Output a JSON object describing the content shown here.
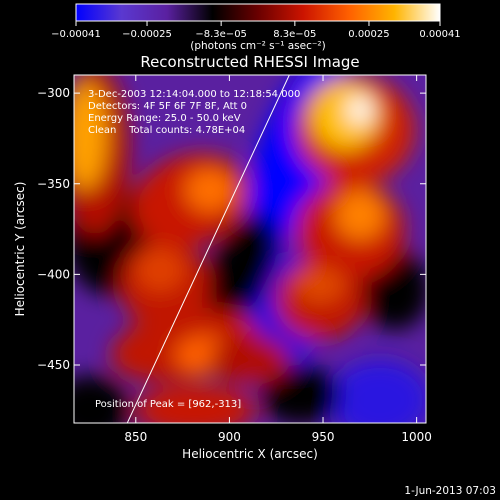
{
  "chart_data": {
    "type": "heatmap",
    "title": "Reconstructed RHESSI Image",
    "xlabel": "Heliocentric X (arcsec)",
    "ylabel": "Heliocentric Y (arcsec)",
    "xlim": [
      817,
      1005
    ],
    "ylim": [
      -482,
      -290
    ],
    "xticks": [
      {
        "value": 850,
        "label": "850"
      },
      {
        "value": 900,
        "label": "900"
      },
      {
        "value": 950,
        "label": "950"
      },
      {
        "value": 1000,
        "label": "1000"
      }
    ],
    "yticks": [
      {
        "value": -300,
        "label": "−300"
      },
      {
        "value": -350,
        "label": "−350"
      },
      {
        "value": -400,
        "label": "−400"
      },
      {
        "value": -450,
        "label": "−450"
      }
    ],
    "colorbar": {
      "range": [
        -0.00041,
        0.00041
      ],
      "tick_values": [
        -0.00041,
        -0.00025,
        -8.3e-05,
        8.3e-05,
        0.00025,
        0.00041
      ],
      "tick_labels": [
        "−0.00041",
        "−0.00025",
        "−8.3e−05",
        "8.3e−05",
        "0.00025",
        "0.00041"
      ],
      "unit_label": "(photons cm⁻² s⁻¹ asec⁻²)",
      "colors": [
        "#0000ff",
        "#5a38d0",
        "#5a20a0",
        "#000000",
        "#6a0000",
        "#cc1400",
        "#ff6000",
        "#ffb400",
        "#ffffff"
      ]
    },
    "annotations": [
      "3-Dec-2003 12:14:04.000 to 12:18:54.000",
      "Detectors: 4F 5F 6F 7F 8F, Att 0",
      "Energy Range: 25.0 - 50.0 keV",
      "Clean    Total counts: 4.78E+04",
      "Position of Peak = [962,-313]"
    ],
    "limb_line": [
      [
        845,
        -483
      ],
      [
        932,
        -290
      ]
    ],
    "peak": [
      962,
      -313
    ]
  },
  "footer": {
    "timestamp": "1-Jun-2013 07:03"
  }
}
